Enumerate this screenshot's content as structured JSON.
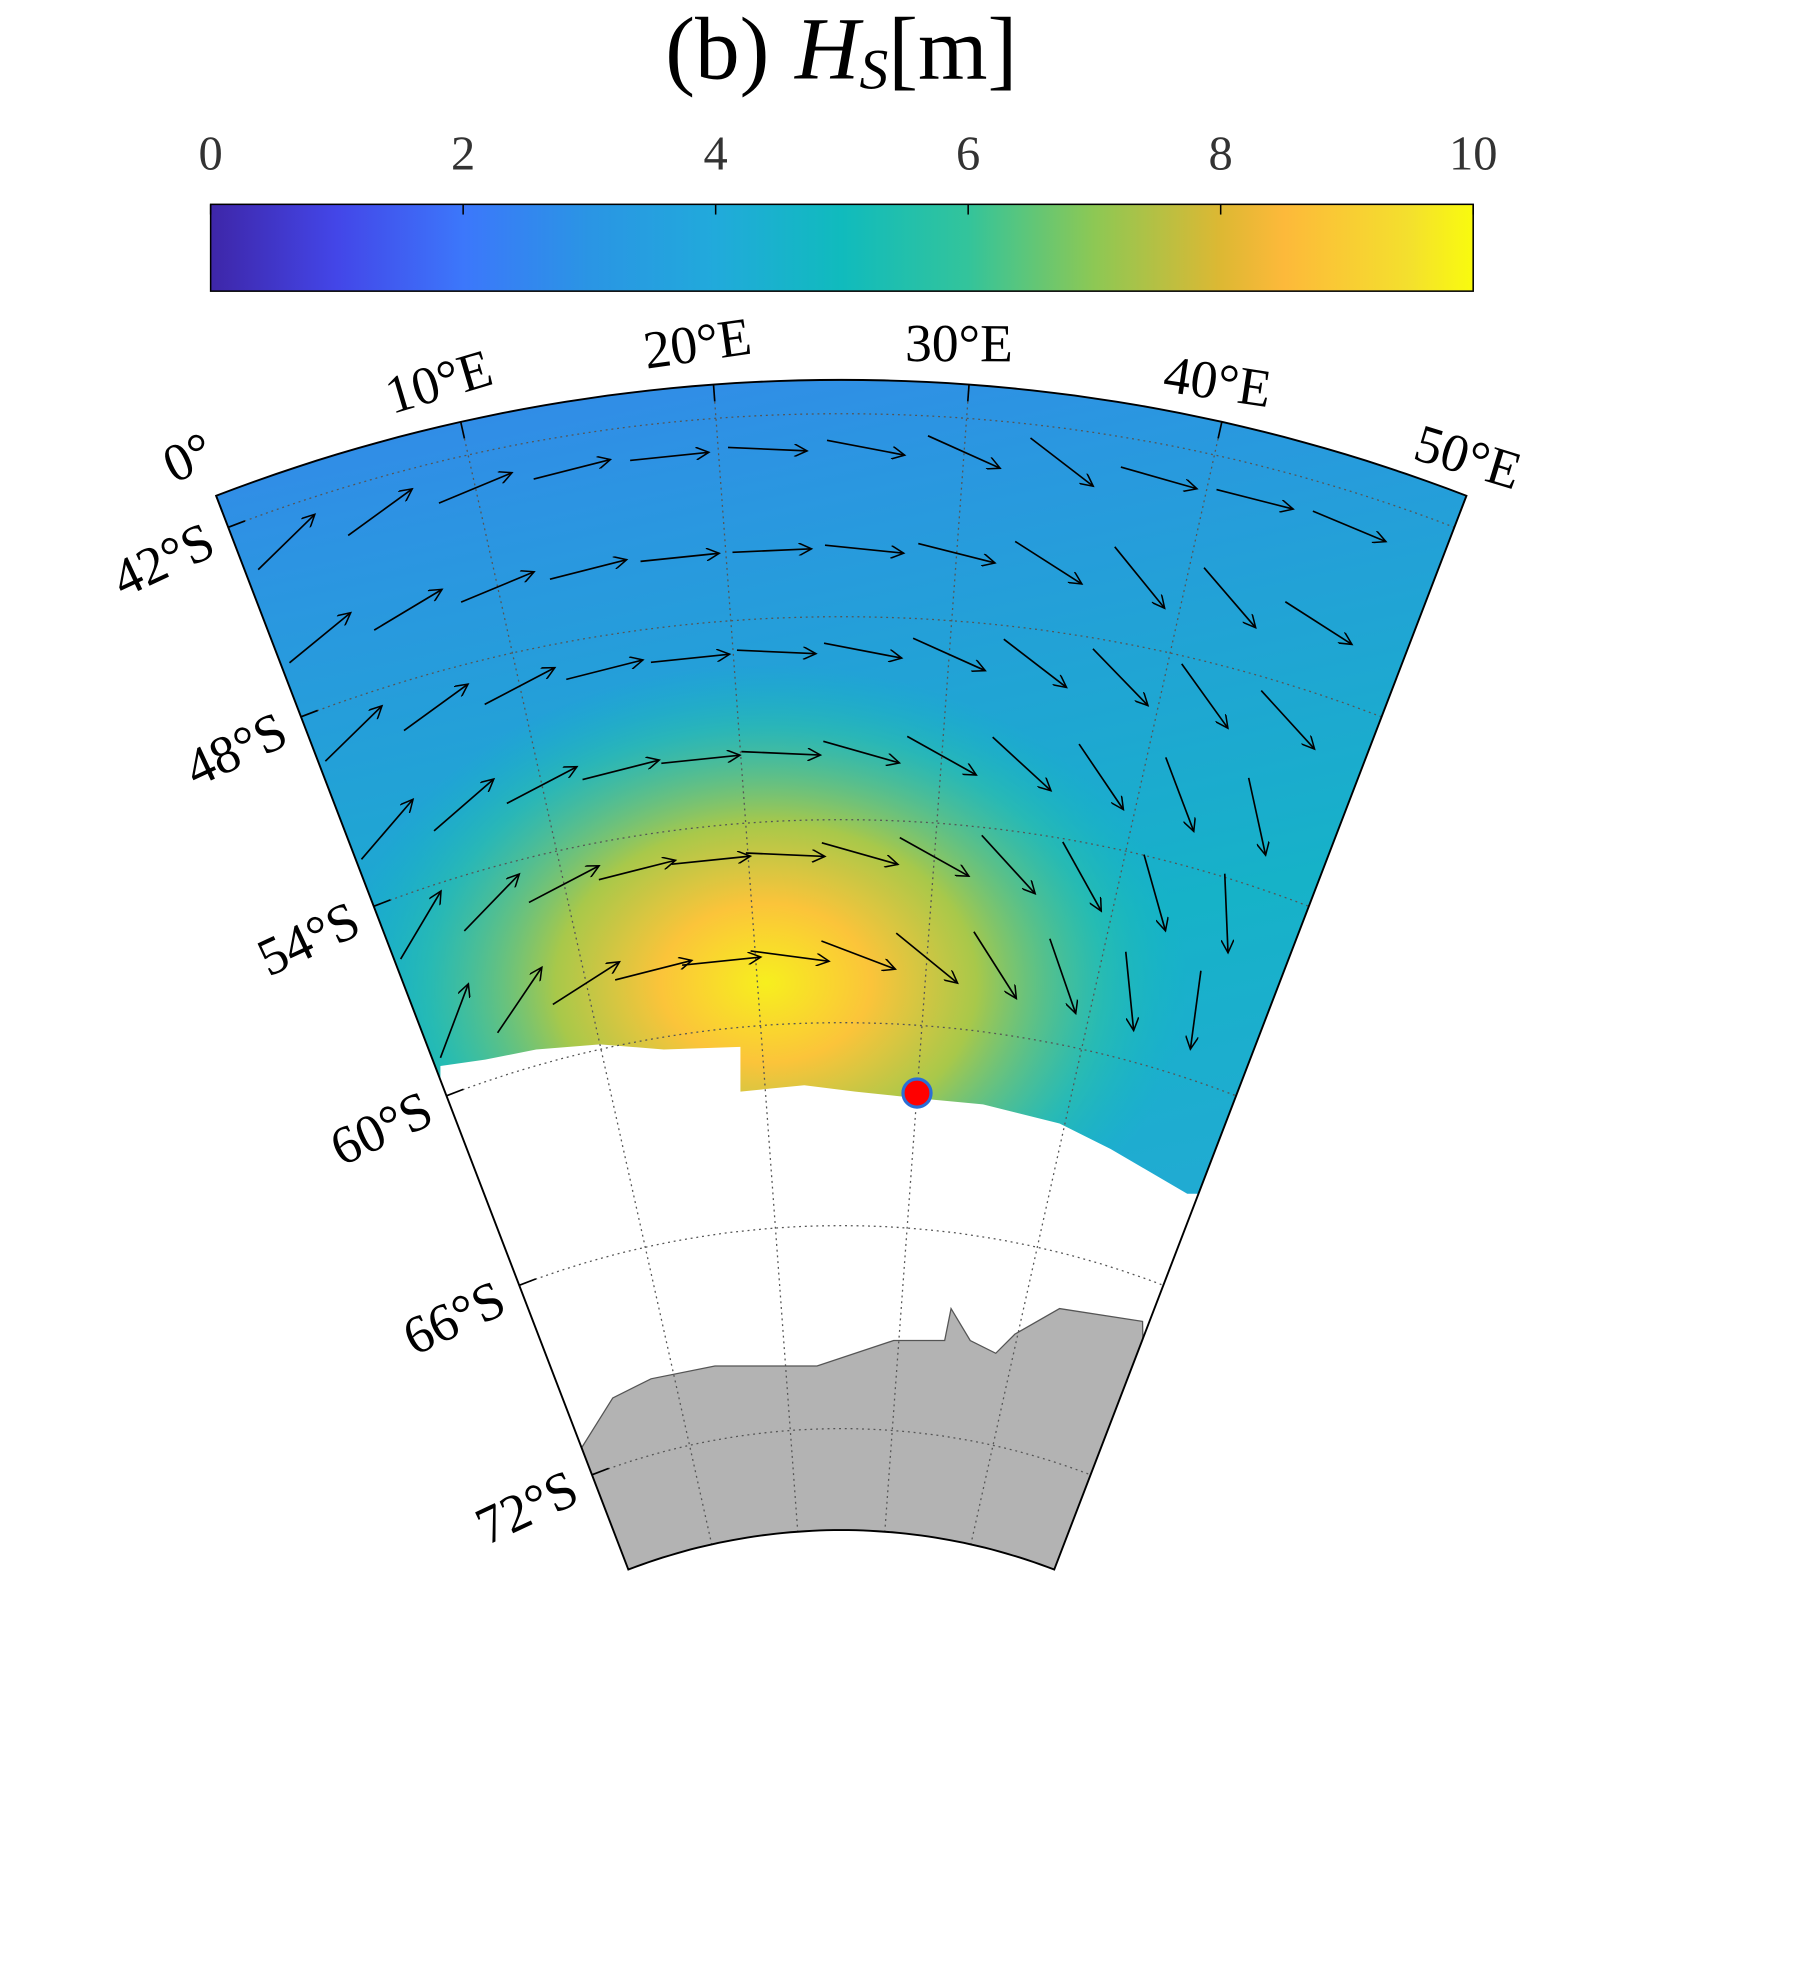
{
  "map": {
    "title": {
      "prefix": "(b)",
      "symbol": "H",
      "subscript": "S",
      "unit": "[m]"
    },
    "colorbar": {
      "lim": [
        0,
        10
      ],
      "ticks": [
        0,
        2,
        4,
        6,
        8,
        10
      ]
    },
    "lonlim": [
      0,
      50
    ],
    "latlim": [
      -41,
      -75
    ],
    "lon_ticks": [
      {
        "value": 0,
        "label": "0°"
      },
      {
        "value": 10,
        "label": "10°E"
      },
      {
        "value": 20,
        "label": "20°E"
      },
      {
        "value": 30,
        "label": "30°E"
      },
      {
        "value": 40,
        "label": "40°E"
      },
      {
        "value": 50,
        "label": "50°E"
      }
    ],
    "lat_ticks": [
      {
        "value": -42,
        "label": "42°S"
      },
      {
        "value": -48,
        "label": "48°S"
      },
      {
        "value": -54,
        "label": "54°S"
      },
      {
        "value": -60,
        "label": "60°S"
      },
      {
        "value": -66,
        "label": "66°S"
      },
      {
        "value": -72,
        "label": "72°S"
      }
    ],
    "point": {
      "lon": 30,
      "lat": -62,
      "color": "#ff0000"
    },
    "vectors": {
      "lats": [
        -43,
        -46,
        -49,
        -52,
        -55,
        -58
      ],
      "lons": [
        2,
        6,
        10,
        14,
        18,
        22,
        26,
        30,
        34,
        38,
        42,
        46
      ],
      "direction": [
        [
          -25,
          -20,
          -10,
          -5,
          0,
          5,
          10,
          20,
          30,
          5,
          0,
          5
        ],
        [
          -20,
          -15,
          -10,
          -5,
          0,
          0,
          5,
          10,
          25,
          40,
          35,
          15
        ],
        [
          -25,
          -20,
          -15,
          -5,
          0,
          5,
          10,
          20,
          30,
          35,
          40,
          30
        ],
        [
          -30,
          -25,
          -15,
          -5,
          0,
          5,
          15,
          25,
          35,
          45,
          55,
          60
        ],
        [
          -40,
          -30,
          -15,
          -5,
          0,
          5,
          15,
          25,
          40,
          50,
          60,
          70
        ],
        [
          -50,
          -40,
          -20,
          -5,
          0,
          10,
          20,
          35,
          50,
          60,
          70,
          80
        ]
      ]
    }
  }
}
